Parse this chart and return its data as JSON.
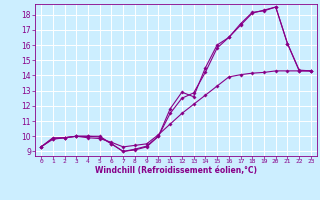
{
  "xlabel": "Windchill (Refroidissement éolien,°C)",
  "bg_color": "#cceeff",
  "grid_color": "#ffffff",
  "line_color": "#880088",
  "xlim": [
    -0.5,
    23.5
  ],
  "ylim": [
    8.7,
    18.7
  ],
  "xticks": [
    0,
    1,
    2,
    3,
    4,
    5,
    6,
    7,
    8,
    9,
    10,
    11,
    12,
    13,
    14,
    15,
    16,
    17,
    18,
    19,
    20,
    21,
    22,
    23
  ],
  "yticks": [
    9,
    10,
    11,
    12,
    13,
    14,
    15,
    16,
    17,
    18
  ],
  "line1_x": [
    0,
    1,
    2,
    3,
    4,
    5,
    6,
    7,
    8,
    9,
    10,
    11,
    12,
    13,
    14,
    15,
    16,
    17,
    18,
    19,
    20,
    21,
    22,
    23
  ],
  "line1_y": [
    9.3,
    9.9,
    9.9,
    10.0,
    10.0,
    10.0,
    9.5,
    9.0,
    9.1,
    9.3,
    10.0,
    11.8,
    12.9,
    12.6,
    14.5,
    16.0,
    16.5,
    17.3,
    18.1,
    18.3,
    18.5,
    16.1,
    14.3,
    14.3
  ],
  "line2_x": [
    0,
    1,
    2,
    3,
    4,
    5,
    6,
    7,
    8,
    9,
    10,
    11,
    12,
    13,
    14,
    15,
    16,
    17,
    18,
    19,
    20,
    21,
    22,
    23
  ],
  "line2_y": [
    9.3,
    9.85,
    9.9,
    10.0,
    10.0,
    9.95,
    9.5,
    9.0,
    9.15,
    9.35,
    10.0,
    11.5,
    12.5,
    12.85,
    14.2,
    15.8,
    16.5,
    17.4,
    18.15,
    18.25,
    18.5,
    16.1,
    14.35,
    14.3
  ],
  "line3_x": [
    0,
    1,
    2,
    3,
    4,
    5,
    6,
    7,
    8,
    9,
    10,
    11,
    12,
    13,
    14,
    15,
    16,
    17,
    18,
    19,
    20,
    21,
    22,
    23
  ],
  "line3_y": [
    9.3,
    9.8,
    9.9,
    10.0,
    9.9,
    9.85,
    9.6,
    9.3,
    9.4,
    9.5,
    10.1,
    10.8,
    11.5,
    12.1,
    12.7,
    13.3,
    13.9,
    14.05,
    14.15,
    14.2,
    14.3,
    14.3,
    14.3,
    14.3
  ],
  "marker_indices1": [
    0,
    1,
    2,
    3,
    4,
    5,
    6,
    7,
    8,
    9,
    10,
    11,
    12,
    13,
    14,
    15,
    16,
    17,
    18,
    19,
    20,
    21,
    22,
    23
  ],
  "marker_indices3": [
    0,
    1,
    2,
    3,
    4,
    5,
    6,
    7,
    8,
    9,
    10,
    11,
    12,
    13,
    14,
    15,
    16,
    17,
    18,
    19,
    20,
    21,
    22,
    23
  ]
}
